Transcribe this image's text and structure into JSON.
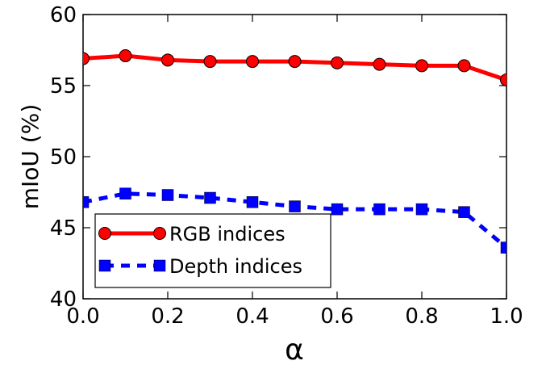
{
  "chart_data": {
    "type": "line",
    "xlabel": "α",
    "ylabel": "mIoU (%)",
    "xlim": [
      0.0,
      1.0
    ],
    "ylim": [
      40,
      60
    ],
    "x_ticks": [
      "0.0",
      "0.2",
      "0.4",
      "0.6",
      "0.8",
      "1.0"
    ],
    "y_ticks": [
      "40",
      "45",
      "50",
      "55",
      "60"
    ],
    "x": [
      0.0,
      0.1,
      0.2,
      0.3,
      0.4,
      0.5,
      0.6,
      0.7,
      0.8,
      0.9,
      1.0
    ],
    "series": [
      {
        "name": "RGB indices",
        "values": [
          56.9,
          57.1,
          56.8,
          56.7,
          56.7,
          56.7,
          56.6,
          56.5,
          56.4,
          56.4,
          55.4
        ],
        "color": "#ff0000",
        "marker": "circle",
        "linestyle": "solid"
      },
      {
        "name": "Depth indices",
        "values": [
          46.8,
          47.4,
          47.3,
          47.1,
          46.8,
          46.5,
          46.3,
          46.3,
          46.3,
          46.1,
          43.6
        ],
        "color": "#0000ff",
        "marker": "square",
        "linestyle": "dashed"
      }
    ],
    "grid": false,
    "legend_position": "bottom-left"
  }
}
